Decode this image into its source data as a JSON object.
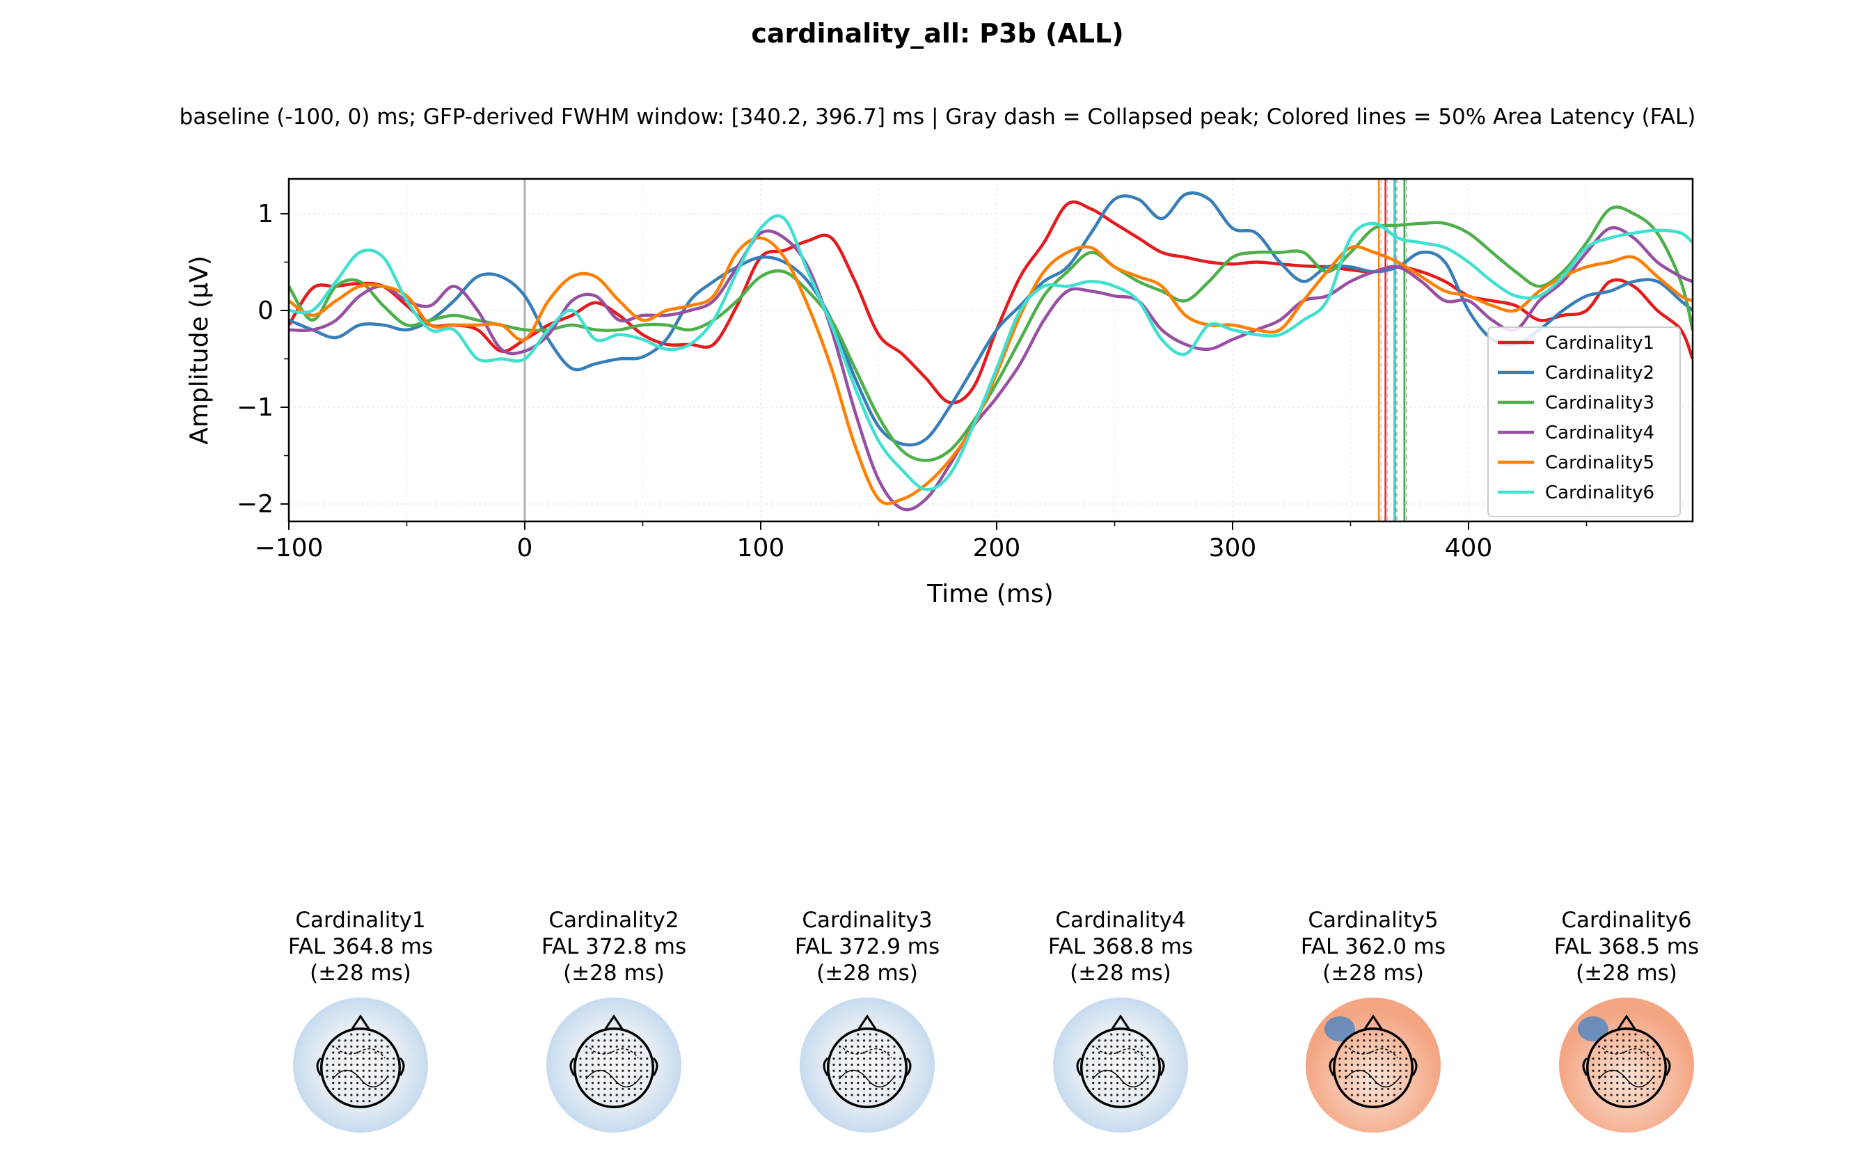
{
  "figure": {
    "title": "cardinality_all: P3b (ALL)",
    "subtitle": "baseline (-100, 0) ms; GFP-derived FWHM window: [340.2, 396.7] ms | Gray dash = Collapsed peak; Colored lines = 50% Area Latency (FAL)"
  },
  "chart_data": {
    "type": "line",
    "xlabel": "Time (ms)",
    "ylabel": "Amplitude (µV)",
    "xlim": [
      -100,
      495
    ],
    "ylim": [
      -2.18,
      1.36
    ],
    "xticks": [
      -100,
      0,
      100,
      200,
      300,
      400
    ],
    "yticks": [
      -2,
      -1,
      0,
      1
    ],
    "grid": true,
    "legend_position": "lower-right",
    "stimulus_onset_ms": 0,
    "x": [
      -100,
      -90,
      -80,
      -70,
      -60,
      -50,
      -40,
      -30,
      -20,
      -10,
      0,
      10,
      20,
      30,
      40,
      50,
      60,
      70,
      80,
      90,
      100,
      110,
      120,
      130,
      140,
      150,
      160,
      170,
      180,
      190,
      200,
      210,
      220,
      230,
      240,
      250,
      260,
      270,
      280,
      290,
      300,
      310,
      320,
      330,
      340,
      350,
      360,
      370,
      380,
      390,
      400,
      410,
      420,
      430,
      440,
      450,
      460,
      470,
      480,
      490,
      495
    ],
    "series": [
      {
        "name": "Cardinality1",
        "color": "#e41a1c",
        "fal_ms": 364.8,
        "values": [
          -0.15,
          0.23,
          0.25,
          0.28,
          0.25,
          0.05,
          -0.15,
          -0.15,
          -0.2,
          -0.42,
          -0.3,
          -0.15,
          -0.05,
          0.08,
          -0.05,
          -0.25,
          -0.35,
          -0.35,
          -0.35,
          0.05,
          0.55,
          0.62,
          0.72,
          0.75,
          0.3,
          -0.25,
          -0.45,
          -0.7,
          -0.95,
          -0.8,
          -0.2,
          0.35,
          0.7,
          1.1,
          1.05,
          0.9,
          0.75,
          0.6,
          0.55,
          0.5,
          0.48,
          0.5,
          0.48,
          0.46,
          0.45,
          0.42,
          0.4,
          0.45,
          0.4,
          0.3,
          0.15,
          0.1,
          0.05,
          -0.1,
          -0.05,
          0.0,
          0.3,
          0.25,
          0.0,
          -0.2,
          -0.5
        ]
      },
      {
        "name": "Cardinality2",
        "color": "#377eb8",
        "fal_ms": 372.8,
        "values": [
          -0.1,
          -0.2,
          -0.28,
          -0.15,
          -0.15,
          -0.2,
          -0.1,
          0.1,
          0.35,
          0.35,
          0.15,
          -0.3,
          -0.6,
          -0.55,
          -0.5,
          -0.48,
          -0.3,
          0.1,
          0.3,
          0.45,
          0.55,
          0.5,
          0.3,
          -0.1,
          -0.7,
          -1.2,
          -1.38,
          -1.33,
          -1.0,
          -0.6,
          -0.2,
          0.05,
          0.3,
          0.45,
          0.8,
          1.15,
          1.15,
          0.95,
          1.2,
          1.15,
          0.85,
          0.8,
          0.5,
          0.3,
          0.45,
          0.45,
          0.4,
          0.45,
          0.6,
          0.5,
          0.0,
          -0.3,
          -0.35,
          -0.2,
          0.0,
          0.15,
          0.2,
          0.3,
          0.3,
          0.1,
          0.0
        ]
      },
      {
        "name": "Cardinality3",
        "color": "#4daf4a",
        "fal_ms": 372.9,
        "values": [
          0.25,
          -0.1,
          0.25,
          0.3,
          0.05,
          -0.15,
          -0.1,
          -0.05,
          -0.1,
          -0.15,
          -0.2,
          -0.2,
          -0.15,
          -0.2,
          -0.2,
          -0.15,
          -0.15,
          -0.2,
          -0.1,
          0.1,
          0.35,
          0.4,
          0.2,
          -0.1,
          -0.6,
          -1.1,
          -1.45,
          -1.55,
          -1.45,
          -1.15,
          -0.75,
          -0.3,
          0.15,
          0.4,
          0.6,
          0.45,
          0.3,
          0.2,
          0.1,
          0.3,
          0.55,
          0.6,
          0.6,
          0.6,
          0.4,
          0.6,
          0.85,
          0.88,
          0.9,
          0.9,
          0.8,
          0.6,
          0.4,
          0.25,
          0.4,
          0.7,
          1.05,
          1.0,
          0.8,
          0.3,
          -0.2
        ]
      },
      {
        "name": "Cardinality4",
        "color": "#984ea3",
        "fal_ms": 368.8,
        "values": [
          -0.2,
          -0.2,
          -0.1,
          0.15,
          0.25,
          0.1,
          0.05,
          0.25,
          0.0,
          -0.4,
          -0.42,
          -0.25,
          0.1,
          0.15,
          -0.1,
          -0.05,
          -0.05,
          0.0,
          0.1,
          0.45,
          0.8,
          0.75,
          0.45,
          -0.2,
          -1.05,
          -1.75,
          -2.05,
          -1.95,
          -1.6,
          -1.2,
          -0.9,
          -0.55,
          -0.1,
          0.2,
          0.2,
          0.15,
          0.1,
          -0.2,
          -0.35,
          -0.4,
          -0.3,
          -0.2,
          -0.1,
          0.1,
          0.15,
          0.3,
          0.4,
          0.45,
          0.3,
          0.1,
          0.1,
          -0.1,
          -0.2,
          0.1,
          0.3,
          0.6,
          0.85,
          0.75,
          0.5,
          0.35,
          0.3
        ]
      },
      {
        "name": "Cardinality5",
        "color": "#ff7f00",
        "fal_ms": 362.0,
        "values": [
          0.1,
          -0.05,
          0.1,
          0.25,
          0.25,
          0.15,
          -0.15,
          -0.15,
          -0.15,
          -0.15,
          -0.3,
          0.1,
          0.35,
          0.35,
          0.1,
          -0.1,
          0.0,
          0.05,
          0.15,
          0.6,
          0.75,
          0.55,
          0.05,
          -0.6,
          -1.4,
          -1.95,
          -1.95,
          -1.8,
          -1.55,
          -1.2,
          -0.65,
          -0.05,
          0.4,
          0.6,
          0.65,
          0.45,
          0.35,
          0.25,
          -0.05,
          -0.15,
          -0.15,
          -0.2,
          -0.2,
          0.1,
          0.4,
          0.65,
          0.6,
          0.5,
          0.35,
          0.2,
          0.15,
          0.05,
          0.0,
          0.2,
          0.35,
          0.45,
          0.5,
          0.55,
          0.35,
          0.15,
          0.1
        ]
      },
      {
        "name": "Cardinality6",
        "color": "#40e0d0",
        "fal_ms": 368.5,
        "values": [
          0.0,
          0.0,
          0.3,
          0.6,
          0.55,
          0.1,
          -0.2,
          -0.2,
          -0.5,
          -0.5,
          -0.5,
          -0.2,
          0.0,
          -0.3,
          -0.25,
          -0.3,
          -0.4,
          -0.35,
          -0.1,
          0.4,
          0.85,
          0.95,
          0.4,
          -0.15,
          -0.8,
          -1.35,
          -1.65,
          -1.85,
          -1.7,
          -1.2,
          -0.6,
          0.0,
          0.25,
          0.25,
          0.3,
          0.25,
          0.1,
          -0.3,
          -0.45,
          -0.15,
          -0.2,
          -0.25,
          -0.25,
          -0.1,
          0.1,
          0.75,
          0.9,
          0.75,
          0.7,
          0.65,
          0.5,
          0.3,
          0.15,
          0.15,
          0.35,
          0.65,
          0.75,
          0.8,
          0.83,
          0.8,
          0.7
        ]
      }
    ]
  },
  "topomaps": [
    {
      "label": "Cardinality1",
      "fal": "FAL 364.8 ms",
      "window": "(±28 ms)"
    },
    {
      "label": "Cardinality2",
      "fal": "FAL 372.8 ms",
      "window": "(±28 ms)"
    },
    {
      "label": "Cardinality3",
      "fal": "FAL 372.9 ms",
      "window": "(±28 ms)"
    },
    {
      "label": "Cardinality4",
      "fal": "FAL 368.8 ms",
      "window": "(±28 ms)"
    },
    {
      "label": "Cardinality5",
      "fal": "FAL 362.0 ms",
      "window": "(±28 ms)"
    },
    {
      "label": "Cardinality6",
      "fal": "FAL 368.5 ms",
      "window": "(±28 ms)"
    }
  ]
}
